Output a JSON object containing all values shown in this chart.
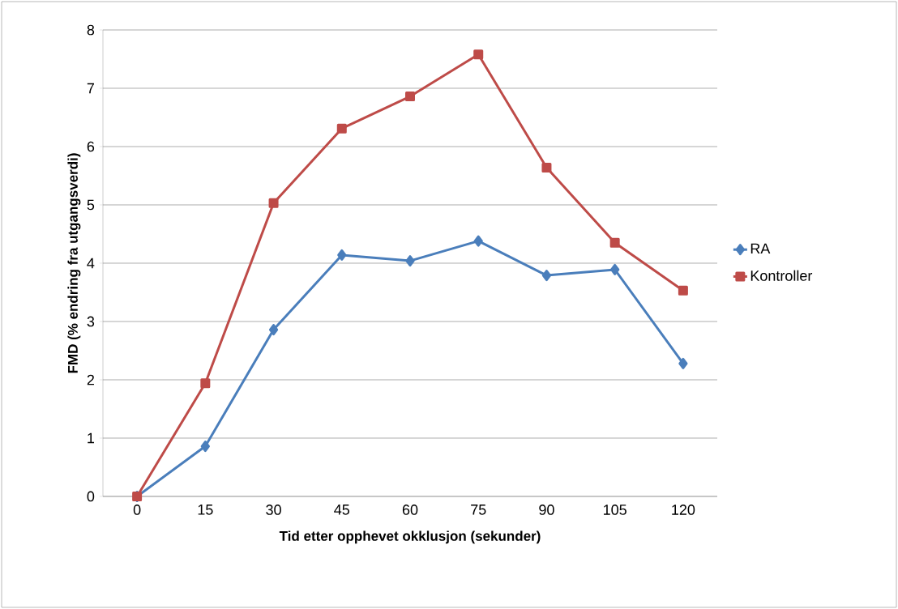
{
  "chart_data": {
    "type": "line",
    "xlabel": "Tid etter opphevet okklusjon (sekunder)",
    "ylabel": "FMD  (% endring fra utgangsverdi)",
    "categories": [
      "0",
      "15",
      "30",
      "45",
      "60",
      "75",
      "90",
      "105",
      "120"
    ],
    "series": [
      {
        "name": "RA",
        "color": "#4a7ebb",
        "marker": "diamond",
        "values": [
          0,
          0.86,
          2.86,
          4.14,
          4.04,
          4.38,
          3.79,
          3.89,
          2.28
        ]
      },
      {
        "name": "Kontroller",
        "color": "#be4b48",
        "marker": "square",
        "values": [
          0,
          1.94,
          5.03,
          6.31,
          6.86,
          7.58,
          5.64,
          4.35,
          3.53
        ]
      }
    ],
    "ylim": [
      0,
      8
    ],
    "yticks": [
      0,
      1,
      2,
      3,
      4,
      5,
      6,
      7,
      8
    ],
    "grid": "y",
    "legend": "right",
    "line_style": "solid"
  }
}
